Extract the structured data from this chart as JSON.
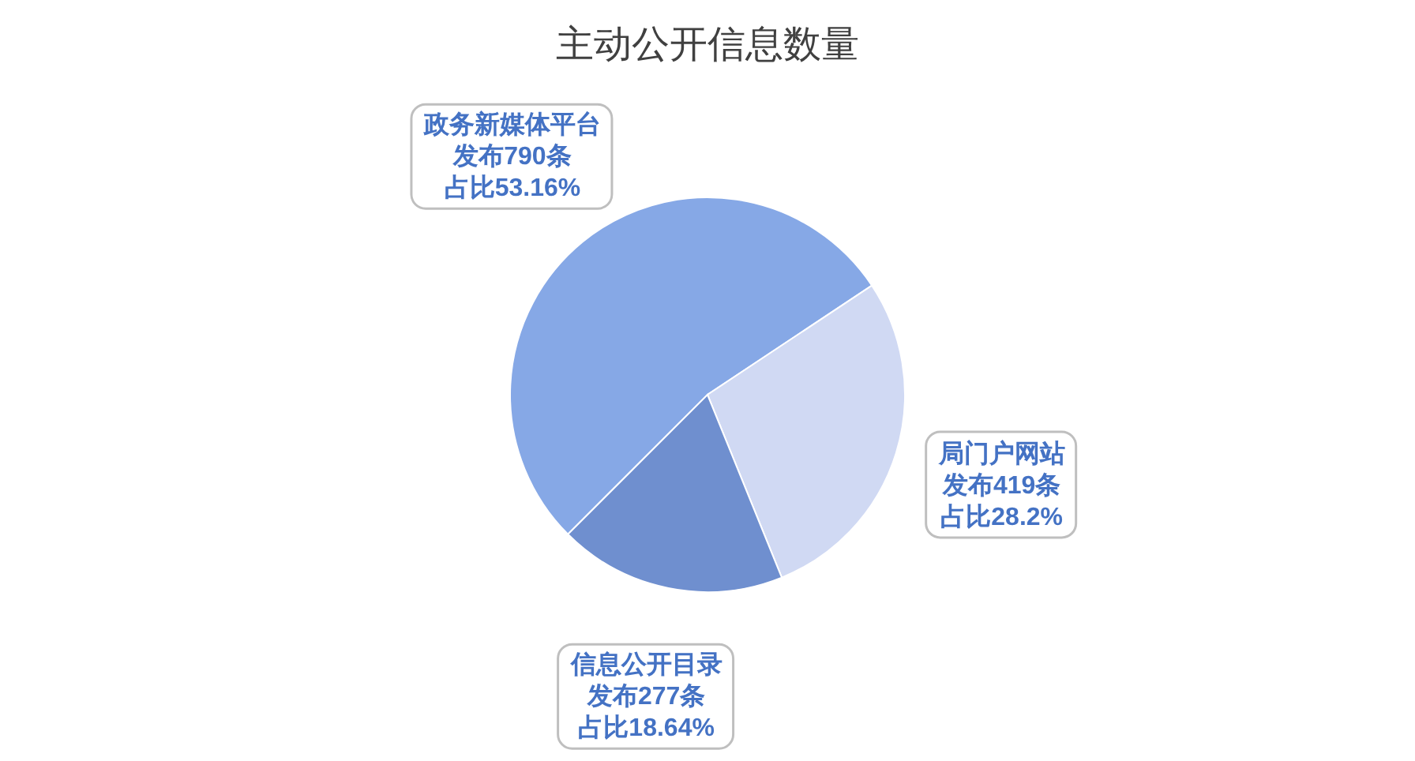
{
  "chart_data": {
    "type": "pie",
    "title": "主动公开信息数量",
    "categories": [
      "政务新媒体平台",
      "局门户网站",
      "信息公开目录"
    ],
    "values": [
      790,
      419,
      277
    ],
    "colors": [
      "#86a8e6",
      "#d0d9f3",
      "#6f8fcf"
    ],
    "value_labels": [
      "发布790条占比53.16%",
      "发布419条占比28.2%",
      "发布277条占比18.64%"
    ]
  }
}
